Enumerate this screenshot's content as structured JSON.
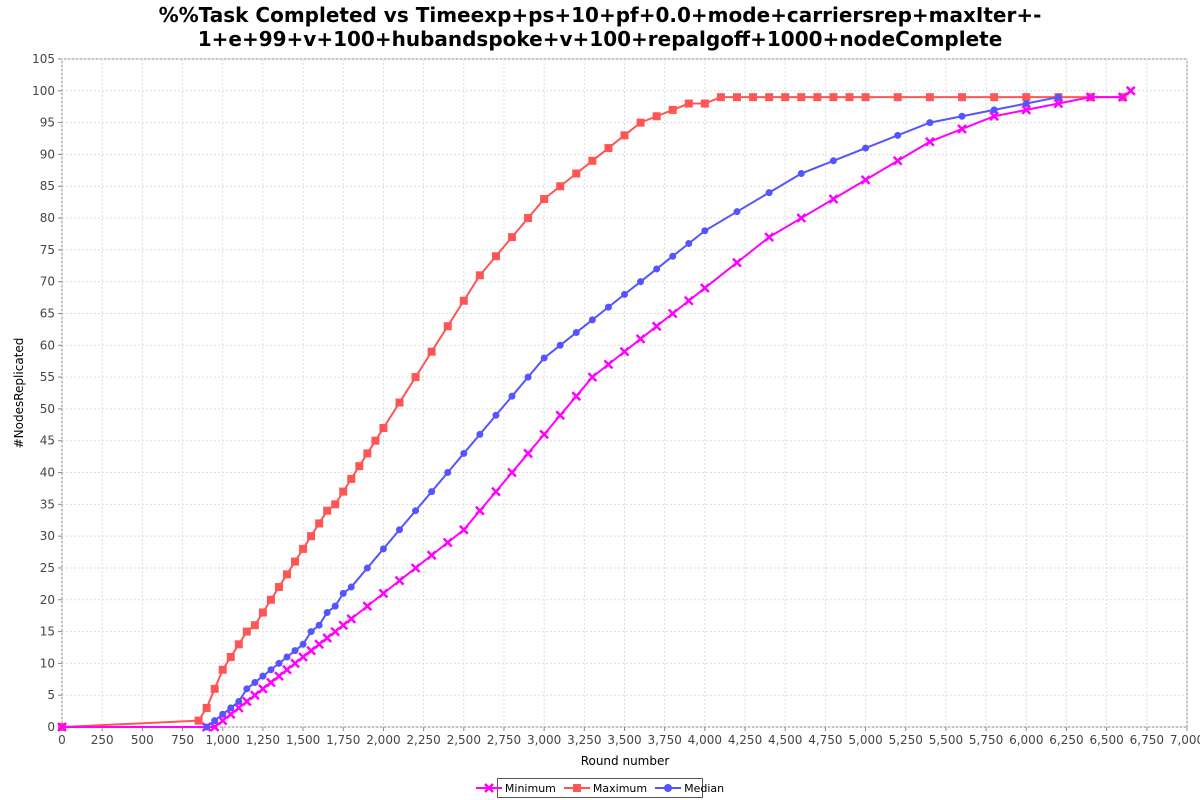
{
  "chart_data": {
    "type": "scatter",
    "title_line1": "%%Task Completed vs Timeexp+ps+10+pf+0.0+mode+carriersrep+maxIter+-",
    "title_line2": "1+e+99+v+100+hubandspoke+v+100+repalgoff+1000+nodeComplete",
    "xlabel": "Round number",
    "ylabel": "#NodesReplicated",
    "xlim": [
      0,
      7000
    ],
    "ylim": [
      0,
      105
    ],
    "xticks": [
      0,
      250,
      500,
      750,
      1000,
      1250,
      1500,
      1750,
      2000,
      2250,
      2500,
      2750,
      3000,
      3250,
      3500,
      3750,
      4000,
      4250,
      4500,
      4750,
      5000,
      5250,
      5500,
      5750,
      6000,
      6250,
      6500,
      6750,
      7000
    ],
    "xtick_labels": [
      "0",
      "250",
      "500",
      "750",
      "1,000",
      "1,250",
      "1,500",
      "1,750",
      "2,000",
      "2,250",
      "2,500",
      "2,750",
      "3,000",
      "3,250",
      "3,500",
      "3,750",
      "4,000",
      "4,250",
      "4,500",
      "4,750",
      "5,000",
      "5,250",
      "5,500",
      "5,750",
      "6,000",
      "6,250",
      "6,500",
      "6,750",
      "7,000"
    ],
    "yticks": [
      0,
      5,
      10,
      15,
      20,
      25,
      30,
      35,
      40,
      45,
      50,
      55,
      60,
      65,
      70,
      75,
      80,
      85,
      90,
      95,
      100,
      105
    ],
    "grid": true,
    "legend_position": "bottom-center",
    "series": [
      {
        "name": "Maximum",
        "color": "#ff5555",
        "marker": "square",
        "x": [
          0,
          850,
          900,
          950,
          1000,
          1050,
          1100,
          1150,
          1200,
          1250,
          1300,
          1350,
          1400,
          1450,
          1500,
          1550,
          1600,
          1650,
          1700,
          1750,
          1800,
          1850,
          1900,
          1950,
          2000,
          2100,
          2200,
          2300,
          2400,
          2500,
          2600,
          2700,
          2800,
          2900,
          3000,
          3100,
          3200,
          3300,
          3400,
          3500,
          3600,
          3700,
          3800,
          3900,
          4000,
          4100,
          4200,
          4300,
          4400,
          4500,
          4600,
          4700,
          4800,
          4900,
          5000,
          5200,
          5400,
          5600,
          5800,
          6000,
          6200,
          6400,
          6600
        ],
        "y": [
          0,
          1,
          3,
          6,
          9,
          11,
          13,
          15,
          16,
          18,
          20,
          22,
          24,
          26,
          28,
          30,
          32,
          34,
          35,
          37,
          39,
          41,
          43,
          45,
          47,
          51,
          55,
          59,
          63,
          67,
          71,
          74,
          77,
          80,
          83,
          85,
          87,
          89,
          91,
          93,
          95,
          96,
          97,
          98,
          98,
          99,
          99,
          99,
          99,
          99,
          99,
          99,
          99,
          99,
          99,
          99,
          99,
          99,
          99,
          99,
          99,
          99,
          99
        ]
      },
      {
        "name": "Minimum",
        "color": "#ff00ff",
        "marker": "x",
        "x": [
          0,
          900,
          950,
          1000,
          1050,
          1100,
          1150,
          1200,
          1250,
          1300,
          1350,
          1400,
          1450,
          1500,
          1550,
          1600,
          1650,
          1700,
          1750,
          1800,
          1900,
          2000,
          2100,
          2200,
          2300,
          2400,
          2500,
          2600,
          2700,
          2800,
          2900,
          3000,
          3100,
          3200,
          3300,
          3400,
          3500,
          3600,
          3700,
          3800,
          3900,
          4000,
          4200,
          4400,
          4600,
          4800,
          5000,
          5200,
          5400,
          5600,
          5800,
          6000,
          6200,
          6400,
          6600,
          6650
        ],
        "y": [
          0,
          0,
          0,
          1,
          2,
          3,
          4,
          5,
          6,
          7,
          8,
          9,
          10,
          11,
          12,
          13,
          14,
          15,
          16,
          17,
          19,
          21,
          23,
          25,
          27,
          29,
          31,
          34,
          37,
          40,
          43,
          46,
          49,
          52,
          55,
          57,
          59,
          61,
          63,
          65,
          67,
          69,
          73,
          77,
          80,
          83,
          86,
          89,
          92,
          94,
          96,
          97,
          98,
          99,
          99,
          100
        ]
      },
      {
        "name": "Median",
        "color": "#5555ff",
        "marker": "circle",
        "x": [
          900,
          950,
          1000,
          1050,
          1100,
          1150,
          1200,
          1250,
          1300,
          1350,
          1400,
          1450,
          1500,
          1550,
          1600,
          1650,
          1700,
          1750,
          1800,
          1900,
          2000,
          2100,
          2200,
          2300,
          2400,
          2500,
          2600,
          2700,
          2800,
          2900,
          3000,
          3100,
          3200,
          3300,
          3400,
          3500,
          3600,
          3700,
          3800,
          3900,
          4000,
          4200,
          4400,
          4600,
          4800,
          5000,
          5200,
          5400,
          5600,
          5800,
          6000,
          6200
        ],
        "y": [
          0,
          1,
          2,
          3,
          4,
          6,
          7,
          8,
          9,
          10,
          11,
          12,
          13,
          15,
          16,
          18,
          19,
          21,
          22,
          25,
          28,
          31,
          34,
          37,
          40,
          43,
          46,
          49,
          52,
          55,
          58,
          60,
          62,
          64,
          66,
          68,
          70,
          72,
          74,
          76,
          78,
          81,
          84,
          87,
          89,
          91,
          93,
          95,
          96,
          97,
          98,
          99
        ]
      }
    ]
  }
}
